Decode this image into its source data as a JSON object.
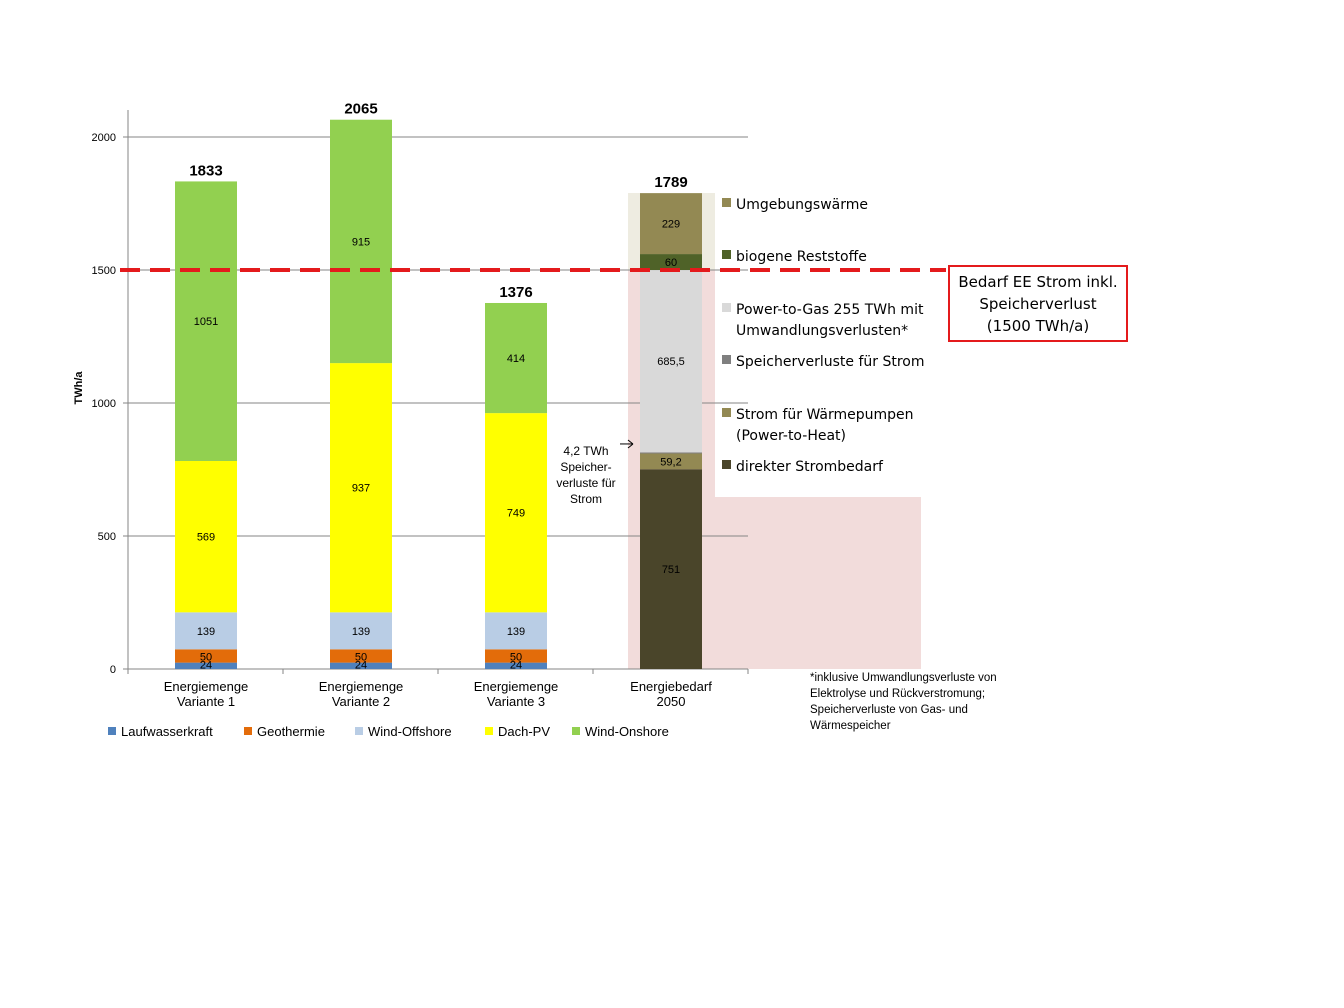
{
  "chart_data": {
    "type": "bar",
    "stacked": true,
    "ylabel": "TWh/a",
    "ylim": [
      0,
      2100
    ],
    "yticks": [
      "0",
      "500",
      "1000",
      "1500",
      "2000"
    ],
    "grid": true,
    "categories": [
      [
        "Energiemenge",
        "Variante 1"
      ],
      [
        "Energiemenge",
        "Variante 2"
      ],
      [
        "Energiemenge",
        "Variante 3"
      ],
      [
        "Energiebedarf",
        "2050"
      ]
    ],
    "totals": [
      "1833",
      "2065",
      "1376",
      "1789"
    ],
    "supply_series": [
      {
        "name": "Laufwasserkraft",
        "color": "#4f81bd",
        "values": [
          24,
          24,
          24,
          null
        ],
        "labels": [
          "24",
          "24",
          "24",
          ""
        ]
      },
      {
        "name": "Geothermie",
        "color": "#e36c0a",
        "values": [
          50,
          50,
          50,
          null
        ],
        "labels": [
          "50",
          "50",
          "50",
          ""
        ]
      },
      {
        "name": "Wind-Offshore",
        "color": "#b9cde5",
        "values": [
          139,
          139,
          139,
          null
        ],
        "labels": [
          "139",
          "139",
          "139",
          ""
        ]
      },
      {
        "name": "Dach-PV",
        "color": "#ffff00",
        "values": [
          569,
          937,
          749,
          null
        ],
        "labels": [
          "569",
          "937",
          "749",
          ""
        ]
      },
      {
        "name": "Wind-Onshore",
        "color": "#92d050",
        "values": [
          1051,
          915,
          414,
          null
        ],
        "labels": [
          "1051",
          "915",
          "414",
          ""
        ]
      }
    ],
    "demand_series": [
      {
        "name": "direkter Strombedarf",
        "color": "#4a452a",
        "value": 751,
        "label": "751",
        "label_color": "#ffffff"
      },
      {
        "name": "Strom für Wärmepumpen\n(Power-to-Heat)",
        "color": "#938953",
        "value": 59.2,
        "label": "59,2",
        "label_color": "#ffffff"
      },
      {
        "name": "Speicherverluste für Strom",
        "color": "#7f7f7f",
        "value": 4.2,
        "label": "",
        "label_color": "#000000"
      },
      {
        "name": "Power-to-Gas 255 TWh mit\nUmwandlungsverlusten*",
        "color": "#d9d9d9",
        "value": 685.5,
        "label": "685,5",
        "label_color": "#000000"
      },
      {
        "name": "biogene Reststoffe",
        "color": "#4f6228",
        "value": 60,
        "label": "60",
        "label_color": "#ffffff"
      },
      {
        "name": "Umgebungswärme",
        "color": "#938953",
        "value": 229,
        "label": "229",
        "label_color": "#ffffff"
      }
    ],
    "legend_right_order": [
      "Umgebungswärme",
      "biogene Reststoffe",
      "Power-to-Gas 255 TWh mit\nUmwandlungsverlusten*",
      "Speicherverluste für Strom",
      "Strom für Wärmepumpen\n(Power-to-Heat)",
      "direkter Strombedarf"
    ],
    "threshold": {
      "value": 1500,
      "color": "#e41a1c"
    },
    "annotations": {
      "callout": [
        "Bedarf EE Strom inkl.",
        "Speicherverlust",
        "(1500 TWh/a)"
      ],
      "storage_note": [
        "4,2 TWh",
        "Speicher-",
        "verluste für",
        "Strom"
      ],
      "footnote": [
        "*inklusive Umwandlungsverluste von",
        "Elektrolyse und Rückverstromung;",
        "Speicherverluste von Gas- und",
        "Wärmespeicher"
      ]
    }
  }
}
